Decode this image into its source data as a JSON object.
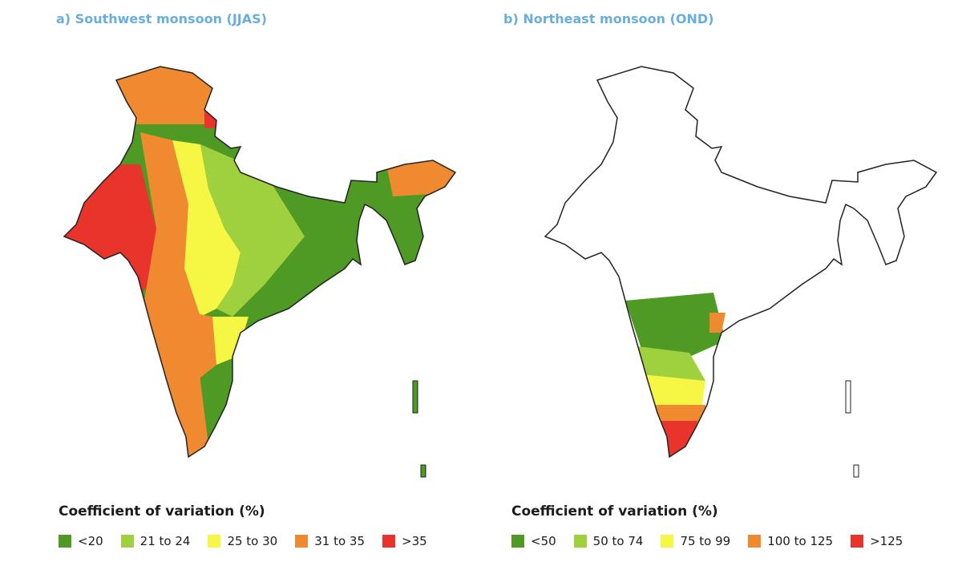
{
  "panels": [
    {
      "title": "a) Southwest monsoon (JJAS)",
      "legend_title": "Coefficient of variation (%)",
      "legend": [
        {
          "label": "<20",
          "color": "#4e9a25"
        },
        {
          "label": "21 to 24",
          "color": "#9fd13f"
        },
        {
          "label": "25 to 30",
          "color": "#f6f645"
        },
        {
          "label": "31 to 35",
          "color": "#f08a30"
        },
        {
          "label": ">35",
          "color": "#e8342a"
        }
      ]
    },
    {
      "title": "b) Northeast monsoon (OND)",
      "legend_title": "Coefficient of variation (%)",
      "legend": [
        {
          "label": "<50",
          "color": "#4e9a25"
        },
        {
          "label": "50 to 74",
          "color": "#9fd13f"
        },
        {
          "label": "75 to 99",
          "color": "#f6f645"
        },
        {
          "label": "100 to 125",
          "color": "#f08a30"
        },
        {
          "label": ">125",
          "color": "#e8342a"
        }
      ]
    }
  ],
  "map_colors": {
    "class1": "#4e9a25",
    "class2": "#9fd13f",
    "class3": "#f6f645",
    "class4": "#f08a30",
    "class5": "#e8342a",
    "dark_green": "#2c6e1a",
    "no_data": "#ffffff",
    "border": "#222222"
  }
}
